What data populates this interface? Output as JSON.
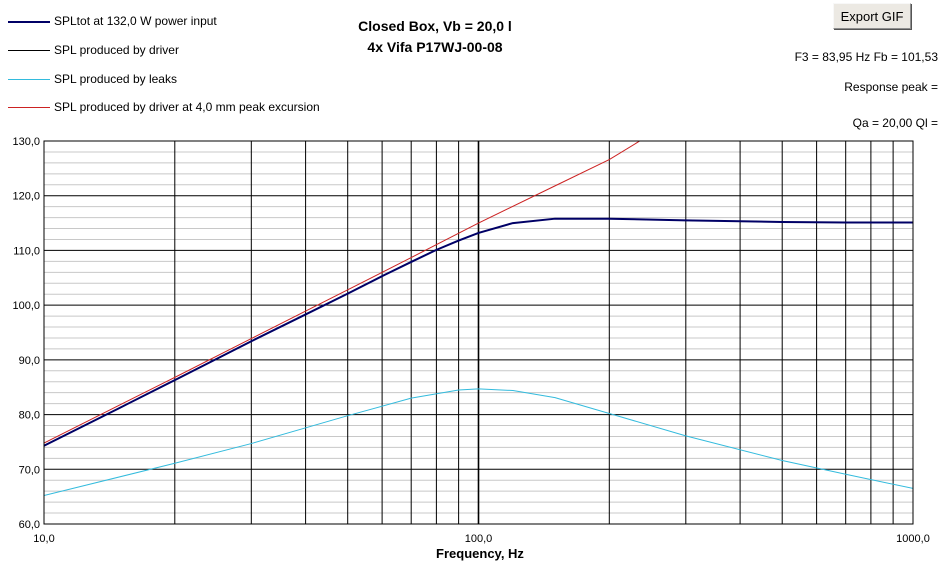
{
  "export_button": "Export GIF",
  "title": [
    "Closed Box, Vb = 20,0 l",
    "4x Vifa P17WJ-00-08"
  ],
  "info": {
    "f3_fb": "F3 = 83,95 Hz  Fb = 101,53",
    "response_peak": "Response peak =",
    "qa_ql": "Qa = 20,00  Ql ="
  },
  "legend": [
    {
      "label": "SPLtot at 132,0 W power input",
      "color": "#000066",
      "width": 2
    },
    {
      "label": "SPL produced by driver",
      "color": "#000000",
      "width": 1
    },
    {
      "label": "SPL produced by leaks",
      "color": "#33bbdd",
      "width": 1
    },
    {
      "label": "SPL produced by driver at 4,0 mm peak excursion",
      "color": "#cc2222",
      "width": 1
    }
  ],
  "chart_data": {
    "type": "line",
    "xlabel": "Frequency, Hz",
    "ylabel": "",
    "xscale": "log",
    "xlim": [
      10,
      1000
    ],
    "ylim": [
      60,
      130
    ],
    "x_ticks": [
      "10,0",
      "100,0",
      "1000,0"
    ],
    "y_ticks": [
      "60,0",
      "70,0",
      "80,0",
      "90,0",
      "100,0",
      "110,0",
      "120,0",
      "130,0"
    ],
    "grid": true,
    "series": [
      {
        "name": "SPLtot at 132,0 W power input",
        "color": "#000066",
        "x": [
          10,
          15,
          20,
          30,
          40,
          50,
          60,
          70,
          80,
          90,
          100,
          120,
          150,
          200,
          300,
          500,
          700,
          1000
        ],
        "y": [
          74.3,
          81.3,
          86.3,
          93.4,
          98.3,
          102.1,
          105.3,
          107.9,
          110.1,
          111.8,
          113.2,
          115.0,
          115.8,
          115.8,
          115.5,
          115.2,
          115.1,
          115.1
        ]
      },
      {
        "name": "SPL produced by driver",
        "color": "#000000",
        "x": [
          10,
          15,
          20,
          30,
          40,
          50,
          60,
          70,
          80,
          90,
          100,
          120,
          150,
          200,
          300,
          500,
          700,
          1000
        ],
        "y": [
          74.3,
          81.3,
          86.3,
          93.4,
          98.3,
          102.1,
          105.3,
          107.9,
          110.1,
          111.8,
          113.2,
          115.0,
          115.8,
          115.8,
          115.5,
          115.2,
          115.1,
          115.1
        ]
      },
      {
        "name": "SPL produced by leaks",
        "color": "#33bbdd",
        "x": [
          10,
          20,
          30,
          50,
          70,
          90,
          100,
          120,
          150,
          200,
          300,
          500,
          700,
          1000
        ],
        "y": [
          65.2,
          71.1,
          74.7,
          79.8,
          83.0,
          84.5,
          84.7,
          84.4,
          83.1,
          80.2,
          76.1,
          71.6,
          69.1,
          66.5
        ]
      },
      {
        "name": "SPL produced by driver at 4,0 mm peak excursion",
        "color": "#cc2222",
        "x": [
          10,
          20,
          30,
          50,
          70,
          100,
          150,
          200,
          235
        ],
        "y": [
          74.8,
          86.8,
          93.9,
          102.8,
          108.7,
          115.0,
          121.8,
          126.6,
          130.0
        ]
      }
    ]
  }
}
